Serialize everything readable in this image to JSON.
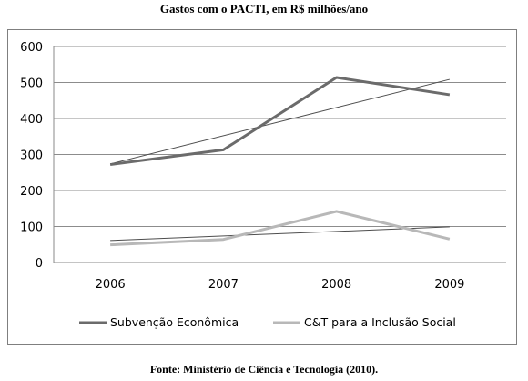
{
  "chart_data": {
    "type": "line",
    "title": "Gastos com o PACTI, em R$ milhões/ano",
    "categories": [
      "2006",
      "2007",
      "2008",
      "2009"
    ],
    "ylim": [
      0,
      600
    ],
    "yticks": [
      0,
      100,
      200,
      300,
      400,
      500,
      600
    ],
    "grid": true,
    "legend_position": "bottom",
    "series": [
      {
        "name": "Subvenção Econômica",
        "values": [
          272,
          313,
          514,
          466
        ],
        "color": "#6b6b6b",
        "trendline": true,
        "trend_color": "#4d4d4d"
      },
      {
        "name": "C&T para a Inclusão Social",
        "values": [
          49,
          64,
          142,
          65
        ],
        "color": "#b8b8b8",
        "trendline": true,
        "trend_color": "#4d4d4d"
      }
    ]
  },
  "source_note": "Fonte: Ministério de Ciência e Tecnologia (2010)."
}
